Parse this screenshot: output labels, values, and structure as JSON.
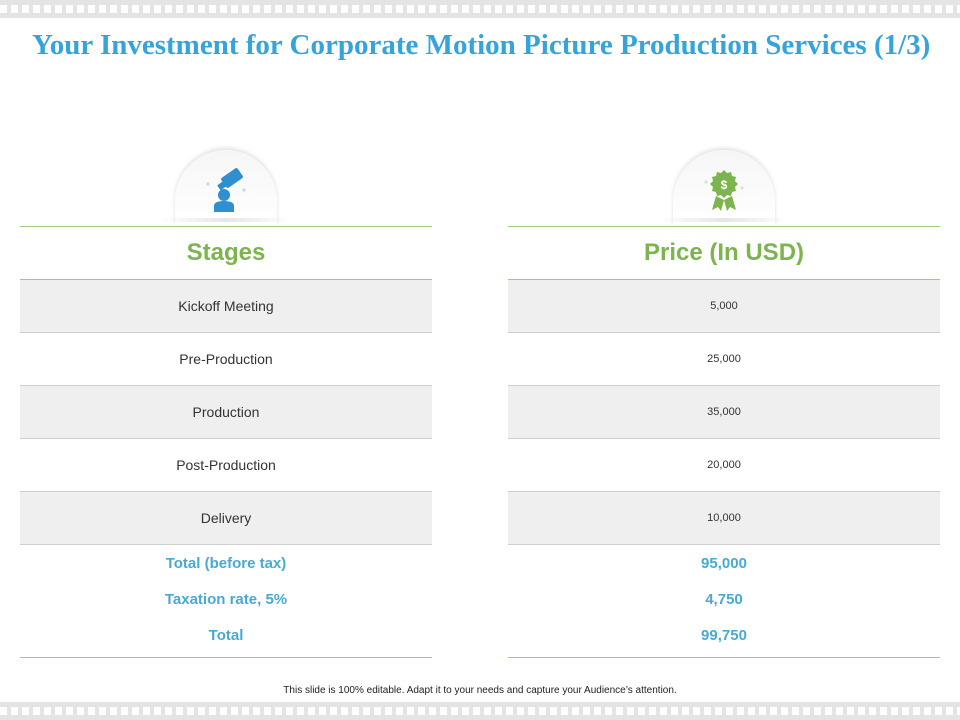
{
  "title": "Your Investment for Corporate Motion Picture Production Services (1/3)",
  "left_column": {
    "icon": "film-camera-person-icon",
    "header": "Stages",
    "rows": [
      "Kickoff Meeting",
      "Pre-Production",
      "Production",
      "Post-Production",
      "Delivery"
    ],
    "totals": [
      "Total (before tax)",
      "Taxation rate, 5%",
      "Total"
    ]
  },
  "right_column": {
    "icon": "dollar-award-badge-icon",
    "header": "Price (In USD)",
    "rows": [
      "5,000",
      "25,000",
      "35,000",
      "20,000",
      "10,000"
    ],
    "totals": [
      "95,000",
      "4,750",
      "99,750"
    ]
  },
  "footer": "This slide is 100% editable.  Adapt it to your needs and capture your Audience’s attention.",
  "colors": {
    "title": "#35a4da",
    "header": "#7cb44d",
    "totals": "#4aa9d3",
    "icon_left": "#2f8fd0",
    "icon_right": "#7cb44d"
  }
}
